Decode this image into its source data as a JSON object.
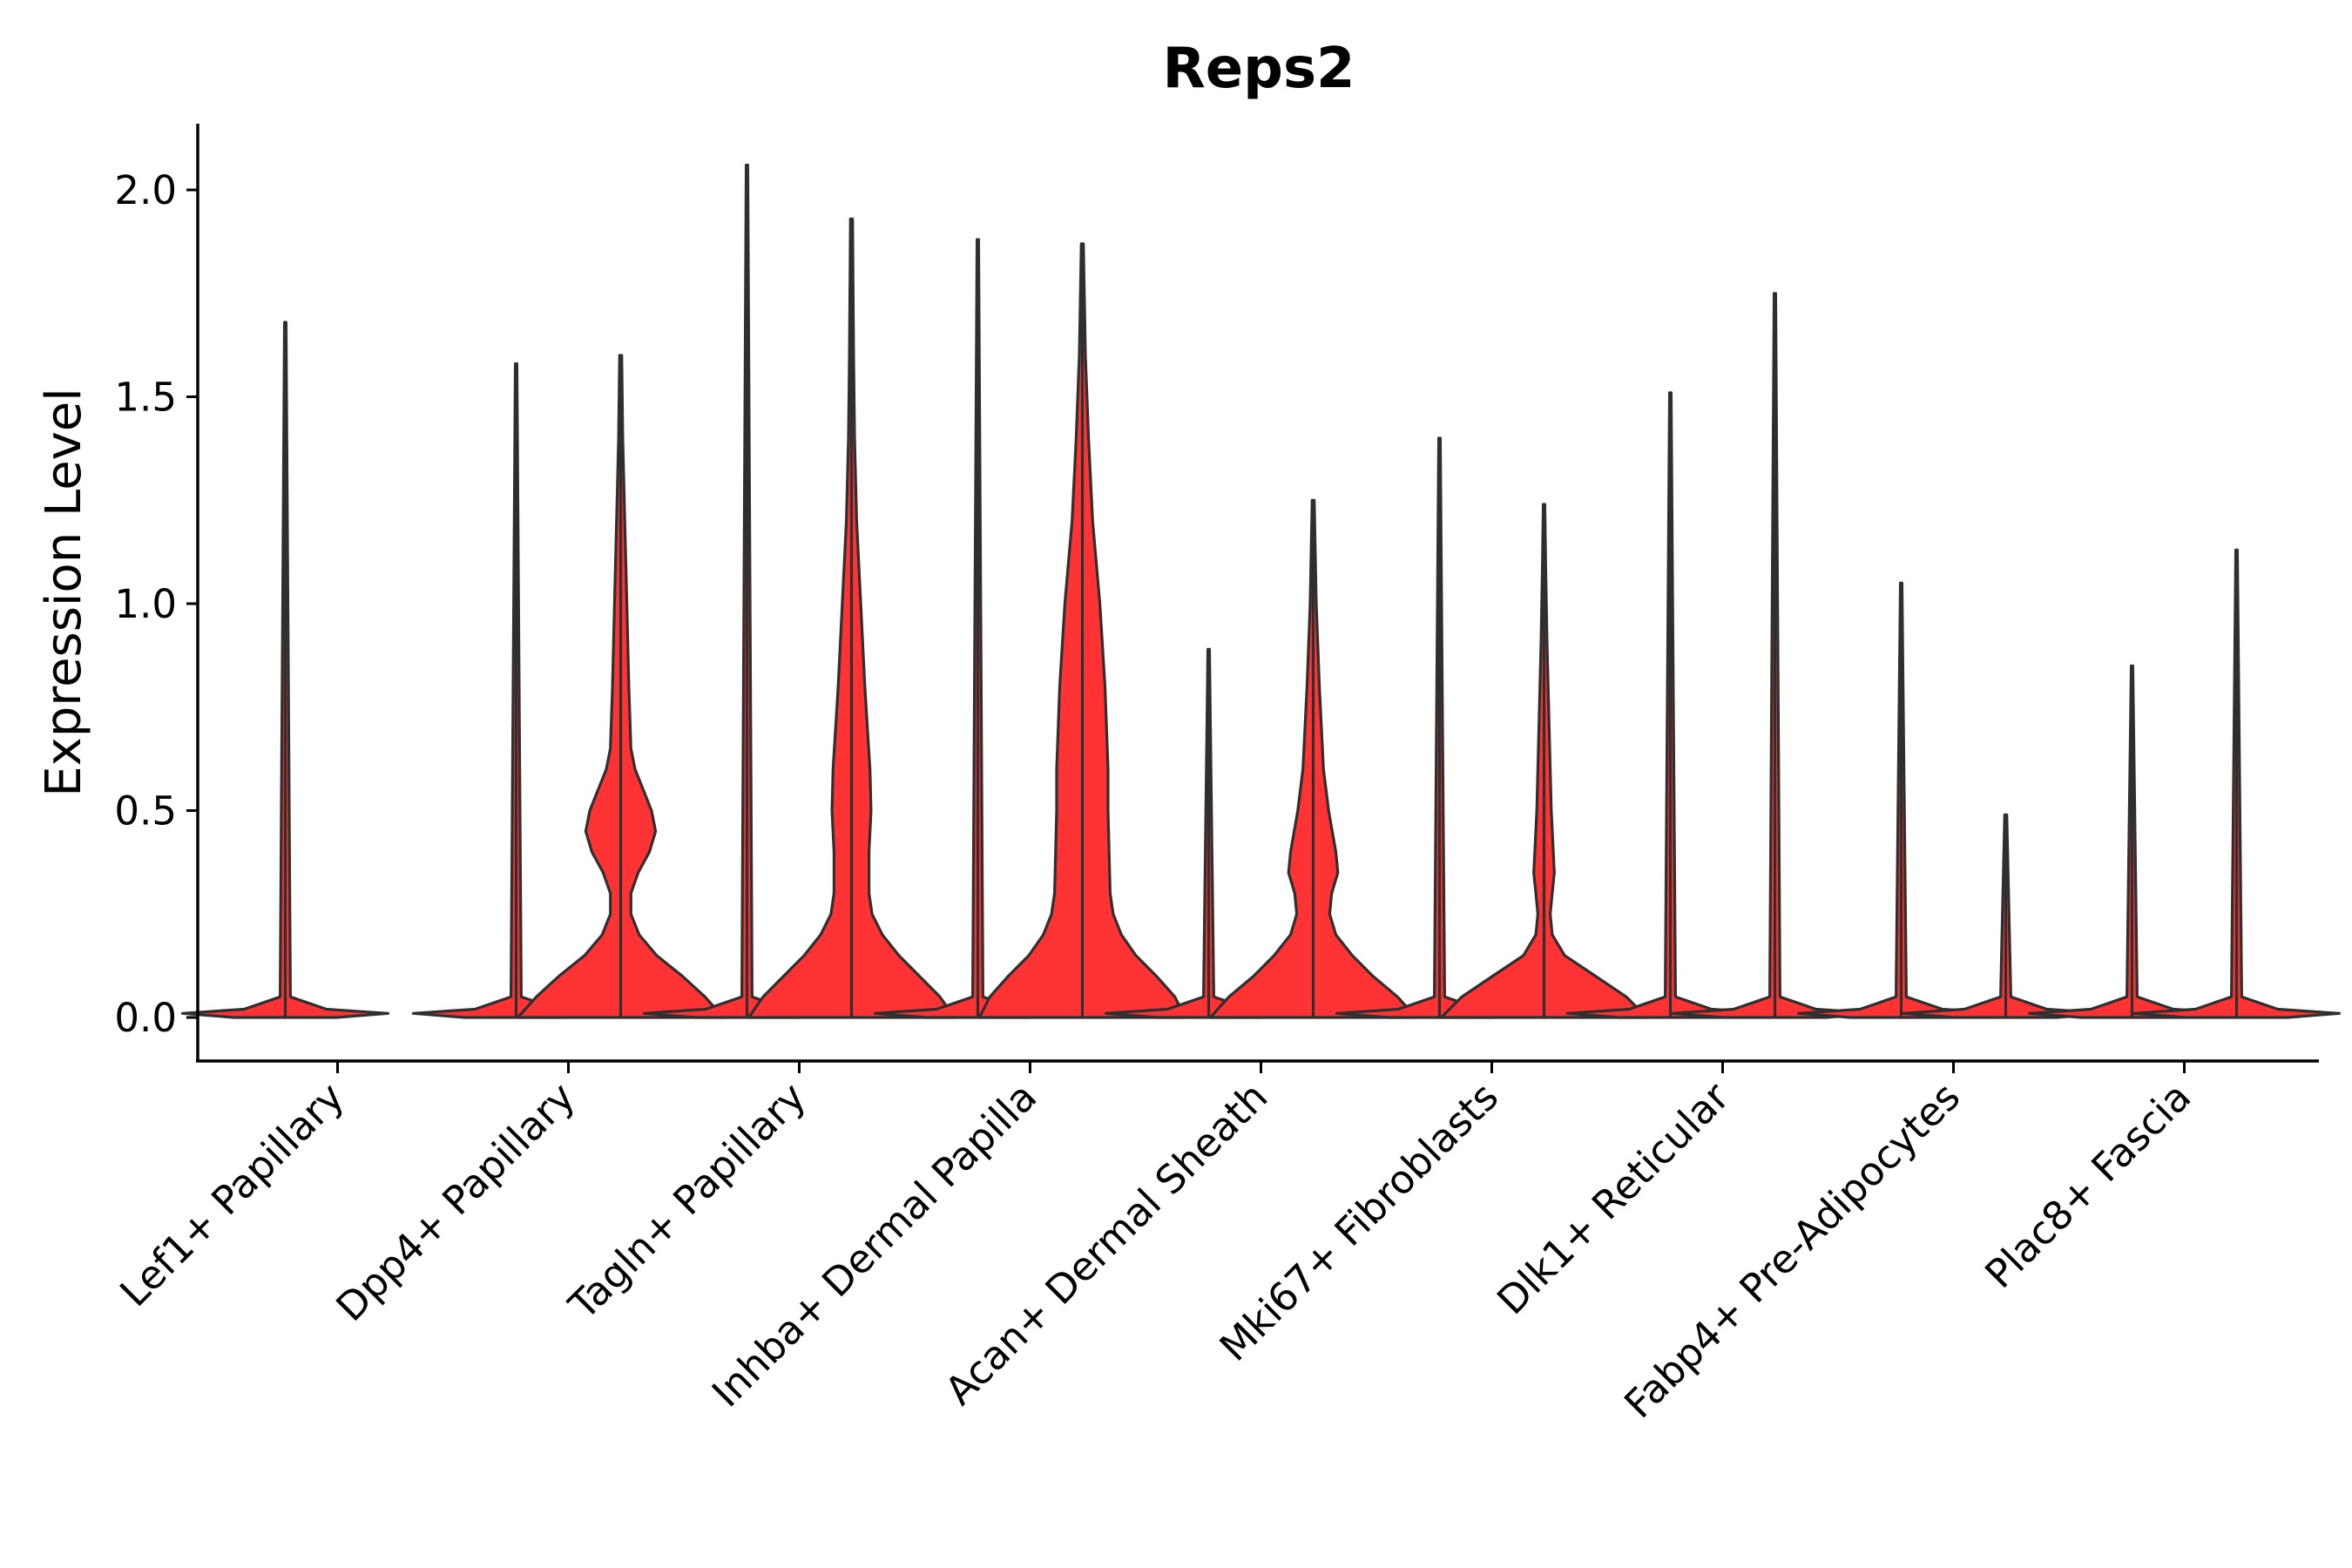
{
  "chart_data": {
    "type": "violin",
    "title": "Reps2",
    "xlabel": "",
    "ylabel": "Expression Level",
    "ylim": [
      -0.1,
      2.15
    ],
    "yticks": [
      "0.0",
      "0.5",
      "1.0",
      "1.5",
      "2.0"
    ],
    "grid": false,
    "legend": "none",
    "colors": {
      "identity1": "#ff3333",
      "identity2": "#ff3333",
      "outline": "#2f2f2f"
    },
    "groups": [
      {
        "category": "Lef1+ Papillary",
        "violins": [
          {
            "max": 1.68,
            "profile": [
              [
                0,
                0.5
              ],
              [
                0.01,
                1
              ],
              [
                0.02,
                0.4
              ],
              [
                0.05,
                0.05
              ],
              [
                1.68,
                0.008
              ]
            ]
          }
        ]
      },
      {
        "category": "Dpp4+ Papillary",
        "violins": [
          {
            "max": 1.58,
            "profile": [
              [
                0,
                0.5
              ],
              [
                0.01,
                1
              ],
              [
                0.02,
                0.4
              ],
              [
                0.05,
                0.05
              ],
              [
                1.58,
                0.008
              ]
            ]
          },
          {
            "max": 1.6,
            "profile": [
              [
                0,
                1
              ],
              [
                0.05,
                0.82
              ],
              [
                0.1,
                0.6
              ],
              [
                0.15,
                0.35
              ],
              [
                0.2,
                0.18
              ],
              [
                0.25,
                0.1
              ],
              [
                0.3,
                0.1
              ],
              [
                0.35,
                0.17
              ],
              [
                0.4,
                0.28
              ],
              [
                0.45,
                0.34
              ],
              [
                0.5,
                0.3
              ],
              [
                0.55,
                0.22
              ],
              [
                0.6,
                0.14
              ],
              [
                0.65,
                0.1
              ],
              [
                0.8,
                0.08
              ],
              [
                1.0,
                0.06
              ],
              [
                1.2,
                0.04
              ],
              [
                1.4,
                0.02
              ],
              [
                1.6,
                0.01
              ]
            ]
          }
        ]
      },
      {
        "category": "Tagln+ Papillary",
        "violins": [
          {
            "max": 2.06,
            "profile": [
              [
                0,
                0.5
              ],
              [
                0.01,
                1
              ],
              [
                0.02,
                0.4
              ],
              [
                0.05,
                0.05
              ],
              [
                2.06,
                0.008
              ]
            ]
          },
          {
            "max": 1.93,
            "profile": [
              [
                0,
                1
              ],
              [
                0.05,
                0.86
              ],
              [
                0.1,
                0.66
              ],
              [
                0.15,
                0.46
              ],
              [
                0.2,
                0.3
              ],
              [
                0.25,
                0.2
              ],
              [
                0.3,
                0.17
              ],
              [
                0.4,
                0.17
              ],
              [
                0.5,
                0.19
              ],
              [
                0.6,
                0.18
              ],
              [
                0.8,
                0.13
              ],
              [
                1.0,
                0.09
              ],
              [
                1.2,
                0.05
              ],
              [
                1.4,
                0.03
              ],
              [
                1.6,
                0.02
              ],
              [
                1.93,
                0.01
              ]
            ]
          }
        ]
      },
      {
        "category": "Inhba+ Dermal Papilla",
        "violins": [
          {
            "max": 1.88,
            "profile": [
              [
                0,
                0.5
              ],
              [
                0.01,
                1
              ],
              [
                0.02,
                0.4
              ],
              [
                0.05,
                0.05
              ],
              [
                1.88,
                0.008
              ]
            ]
          },
          {
            "max": 1.87,
            "profile": [
              [
                0,
                1
              ],
              [
                0.05,
                0.9
              ],
              [
                0.1,
                0.72
              ],
              [
                0.15,
                0.52
              ],
              [
                0.2,
                0.38
              ],
              [
                0.25,
                0.3
              ],
              [
                0.3,
                0.27
              ],
              [
                0.4,
                0.26
              ],
              [
                0.5,
                0.25
              ],
              [
                0.6,
                0.25
              ],
              [
                0.8,
                0.22
              ],
              [
                1.0,
                0.17
              ],
              [
                1.2,
                0.1
              ],
              [
                1.4,
                0.06
              ],
              [
                1.6,
                0.03
              ],
              [
                1.87,
                0.01
              ]
            ]
          }
        ]
      },
      {
        "category": "Acan+ Dermal Sheath",
        "violins": [
          {
            "max": 0.89,
            "profile": [
              [
                0,
                0.5
              ],
              [
                0.01,
                1
              ],
              [
                0.02,
                0.4
              ],
              [
                0.05,
                0.05
              ],
              [
                0.89,
                0.008
              ]
            ]
          },
          {
            "max": 1.25,
            "profile": [
              [
                0,
                1
              ],
              [
                0.05,
                0.82
              ],
              [
                0.1,
                0.58
              ],
              [
                0.15,
                0.38
              ],
              [
                0.2,
                0.22
              ],
              [
                0.25,
                0.16
              ],
              [
                0.3,
                0.18
              ],
              [
                0.35,
                0.24
              ],
              [
                0.4,
                0.22
              ],
              [
                0.5,
                0.15
              ],
              [
                0.6,
                0.1
              ],
              [
                0.8,
                0.06
              ],
              [
                1.0,
                0.03
              ],
              [
                1.25,
                0.01
              ]
            ]
          }
        ]
      },
      {
        "category": "Mki67+ Fibroblasts",
        "violins": [
          {
            "max": 1.4,
            "profile": [
              [
                0,
                0.5
              ],
              [
                0.01,
                1
              ],
              [
                0.02,
                0.4
              ],
              [
                0.05,
                0.05
              ],
              [
                1.4,
                0.008
              ]
            ]
          },
          {
            "max": 1.24,
            "profile": [
              [
                0,
                1
              ],
              [
                0.05,
                0.8
              ],
              [
                0.1,
                0.5
              ],
              [
                0.15,
                0.2
              ],
              [
                0.2,
                0.08
              ],
              [
                0.25,
                0.06
              ],
              [
                0.3,
                0.08
              ],
              [
                0.35,
                0.1
              ],
              [
                0.4,
                0.09
              ],
              [
                0.5,
                0.07
              ],
              [
                0.7,
                0.05
              ],
              [
                0.9,
                0.03
              ],
              [
                1.1,
                0.015
              ],
              [
                1.24,
                0.008
              ]
            ]
          }
        ]
      },
      {
        "category": "Dlk1+ Reticular",
        "violins": [
          {
            "max": 1.51,
            "profile": [
              [
                0,
                0.5
              ],
              [
                0.01,
                1
              ],
              [
                0.02,
                0.4
              ],
              [
                0.05,
                0.05
              ],
              [
                1.51,
                0.008
              ]
            ]
          },
          {
            "max": 1.75,
            "profile": [
              [
                0,
                0.5
              ],
              [
                0.01,
                1
              ],
              [
                0.02,
                0.4
              ],
              [
                0.05,
                0.05
              ],
              [
                1.75,
                0.008
              ]
            ]
          }
        ]
      },
      {
        "category": "Fabp4+ Pre-Adipocytes",
        "violins": [
          {
            "max": 1.05,
            "profile": [
              [
                0,
                0.5
              ],
              [
                0.01,
                1
              ],
              [
                0.02,
                0.4
              ],
              [
                0.05,
                0.05
              ],
              [
                1.05,
                0.008
              ]
            ]
          },
          {
            "max": 0.49,
            "profile": [
              [
                0,
                0.5
              ],
              [
                0.01,
                1
              ],
              [
                0.02,
                0.4
              ],
              [
                0.05,
                0.05
              ],
              [
                0.49,
                0.01
              ]
            ]
          }
        ]
      },
      {
        "category": "Plac8+ Fascia",
        "violins": [
          {
            "max": 0.85,
            "profile": [
              [
                0,
                0.5
              ],
              [
                0.01,
                1
              ],
              [
                0.02,
                0.4
              ],
              [
                0.05,
                0.05
              ],
              [
                0.85,
                0.008
              ]
            ]
          },
          {
            "max": 1.13,
            "profile": [
              [
                0,
                0.5
              ],
              [
                0.01,
                1
              ],
              [
                0.02,
                0.4
              ],
              [
                0.05,
                0.05
              ],
              [
                1.13,
                0.008
              ]
            ]
          }
        ]
      }
    ]
  }
}
